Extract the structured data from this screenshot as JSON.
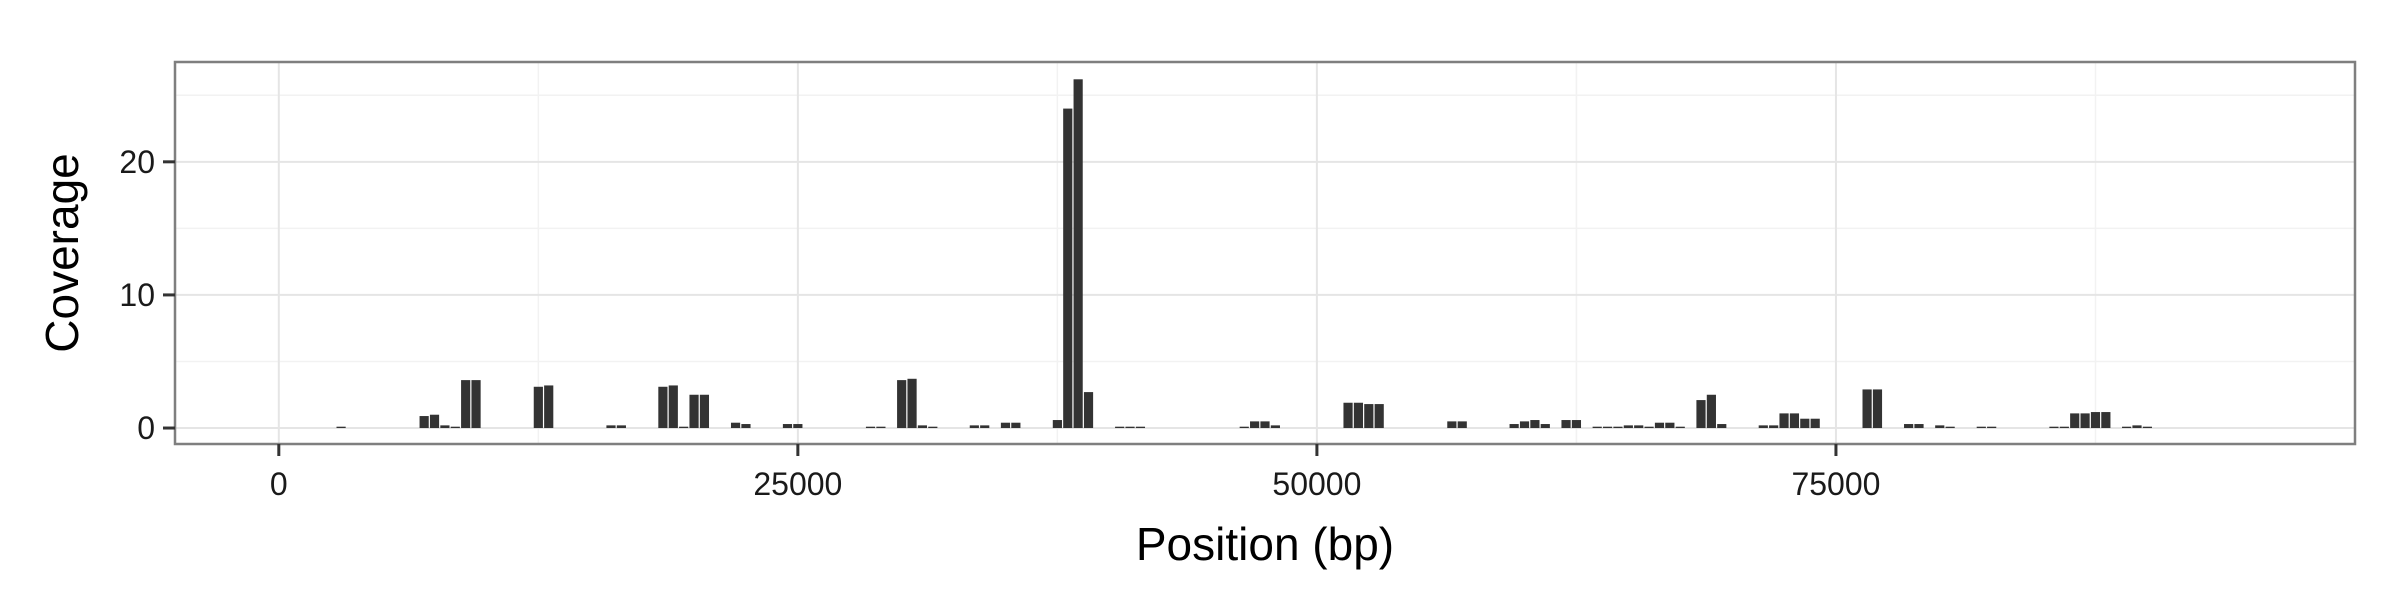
{
  "chart_data": {
    "type": "bar",
    "title": "",
    "xlabel": "Position (bp)",
    "ylabel": "Coverage",
    "xlim": [
      -5000,
      100000
    ],
    "ylim": [
      -1.2,
      27.5
    ],
    "x_ticks": [
      {
        "value": 0,
        "label": "0"
      },
      {
        "value": 25000,
        "label": "25000"
      },
      {
        "value": 50000,
        "label": "50000"
      },
      {
        "value": 75000,
        "label": "75000"
      }
    ],
    "y_ticks": [
      {
        "value": 0,
        "label": "0"
      },
      {
        "value": 10,
        "label": "10"
      },
      {
        "value": 20,
        "label": "20"
      }
    ],
    "grid": true,
    "bar_width": 500,
    "bar_color": "#333333",
    "points": [
      {
        "x": 3000,
        "y": 0.1
      },
      {
        "x": 7000,
        "y": 0.9
      },
      {
        "x": 7500,
        "y": 1.0
      },
      {
        "x": 8000,
        "y": 0.2
      },
      {
        "x": 8500,
        "y": 0.1
      },
      {
        "x": 9000,
        "y": 3.6
      },
      {
        "x": 9500,
        "y": 3.6
      },
      {
        "x": 12500,
        "y": 3.1
      },
      {
        "x": 13000,
        "y": 3.2
      },
      {
        "x": 16000,
        "y": 0.2
      },
      {
        "x": 16500,
        "y": 0.2
      },
      {
        "x": 18500,
        "y": 3.1
      },
      {
        "x": 19000,
        "y": 3.2
      },
      {
        "x": 19500,
        "y": 0.1
      },
      {
        "x": 20000,
        "y": 2.5
      },
      {
        "x": 20500,
        "y": 2.5
      },
      {
        "x": 22000,
        "y": 0.4
      },
      {
        "x": 22500,
        "y": 0.3
      },
      {
        "x": 24500,
        "y": 0.3
      },
      {
        "x": 25000,
        "y": 0.3
      },
      {
        "x": 28500,
        "y": 0.1
      },
      {
        "x": 29000,
        "y": 0.1
      },
      {
        "x": 30000,
        "y": 3.6
      },
      {
        "x": 30500,
        "y": 3.7
      },
      {
        "x": 31000,
        "y": 0.2
      },
      {
        "x": 31500,
        "y": 0.1
      },
      {
        "x": 33500,
        "y": 0.2
      },
      {
        "x": 34000,
        "y": 0.2
      },
      {
        "x": 35000,
        "y": 0.4
      },
      {
        "x": 35500,
        "y": 0.4
      },
      {
        "x": 37500,
        "y": 0.6
      },
      {
        "x": 38000,
        "y": 24.0
      },
      {
        "x": 38500,
        "y": 26.2
      },
      {
        "x": 39000,
        "y": 2.7
      },
      {
        "x": 40500,
        "y": 0.1
      },
      {
        "x": 41000,
        "y": 0.1
      },
      {
        "x": 41500,
        "y": 0.1
      },
      {
        "x": 46500,
        "y": 0.1
      },
      {
        "x": 47000,
        "y": 0.5
      },
      {
        "x": 47500,
        "y": 0.5
      },
      {
        "x": 48000,
        "y": 0.2
      },
      {
        "x": 51500,
        "y": 1.9
      },
      {
        "x": 52000,
        "y": 1.9
      },
      {
        "x": 52500,
        "y": 1.8
      },
      {
        "x": 53000,
        "y": 1.8
      },
      {
        "x": 56500,
        "y": 0.5
      },
      {
        "x": 57000,
        "y": 0.5
      },
      {
        "x": 59500,
        "y": 0.3
      },
      {
        "x": 60000,
        "y": 0.5
      },
      {
        "x": 60500,
        "y": 0.6
      },
      {
        "x": 61000,
        "y": 0.3
      },
      {
        "x": 62000,
        "y": 0.6
      },
      {
        "x": 62500,
        "y": 0.6
      },
      {
        "x": 63500,
        "y": 0.1
      },
      {
        "x": 64000,
        "y": 0.1
      },
      {
        "x": 64500,
        "y": 0.1
      },
      {
        "x": 65000,
        "y": 0.2
      },
      {
        "x": 65500,
        "y": 0.2
      },
      {
        "x": 66000,
        "y": 0.1
      },
      {
        "x": 66500,
        "y": 0.4
      },
      {
        "x": 67000,
        "y": 0.4
      },
      {
        "x": 67500,
        "y": 0.1
      },
      {
        "x": 68500,
        "y": 2.1
      },
      {
        "x": 69000,
        "y": 2.5
      },
      {
        "x": 69500,
        "y": 0.3
      },
      {
        "x": 71500,
        "y": 0.2
      },
      {
        "x": 72000,
        "y": 0.2
      },
      {
        "x": 72500,
        "y": 1.1
      },
      {
        "x": 73000,
        "y": 1.1
      },
      {
        "x": 73500,
        "y": 0.7
      },
      {
        "x": 74000,
        "y": 0.7
      },
      {
        "x": 76500,
        "y": 2.9
      },
      {
        "x": 77000,
        "y": 2.9
      },
      {
        "x": 78500,
        "y": 0.3
      },
      {
        "x": 79000,
        "y": 0.3
      },
      {
        "x": 80000,
        "y": 0.2
      },
      {
        "x": 80500,
        "y": 0.1
      },
      {
        "x": 82000,
        "y": 0.1
      },
      {
        "x": 82500,
        "y": 0.1
      },
      {
        "x": 85500,
        "y": 0.1
      },
      {
        "x": 86000,
        "y": 0.1
      },
      {
        "x": 86500,
        "y": 1.1
      },
      {
        "x": 87000,
        "y": 1.1
      },
      {
        "x": 87500,
        "y": 1.2
      },
      {
        "x": 88000,
        "y": 1.2
      },
      {
        "x": 89000,
        "y": 0.1
      },
      {
        "x": 89500,
        "y": 0.2
      },
      {
        "x": 90000,
        "y": 0.1
      }
    ]
  }
}
